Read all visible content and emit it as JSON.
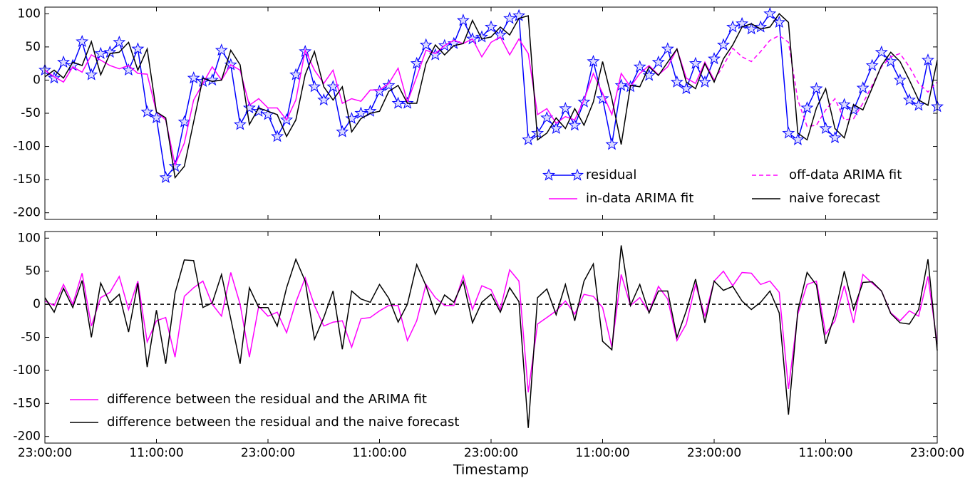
{
  "chart_data": [
    {
      "type": "line",
      "x": [
        0,
        1,
        2,
        3,
        4,
        5,
        6,
        7,
        8,
        9,
        10,
        11,
        12,
        13,
        14,
        15,
        16,
        17,
        18,
        19,
        20,
        21,
        22,
        23,
        24,
        25,
        26,
        27,
        28,
        29,
        30,
        31,
        32,
        33,
        34,
        35,
        36,
        37,
        38,
        39,
        40,
        41,
        42,
        43,
        44,
        45,
        46,
        47,
        48,
        49,
        50,
        51,
        52,
        53,
        54,
        55,
        56,
        57,
        58,
        59,
        60,
        61,
        62,
        63,
        64,
        65,
        66,
        67,
        68,
        69,
        70,
        71,
        72,
        73,
        74,
        75,
        76,
        77,
        78,
        79,
        80,
        81,
        82,
        83,
        84,
        85,
        86,
        87,
        88,
        89,
        90,
        91,
        92,
        93,
        94,
        95,
        96
      ],
      "xlim": [
        0,
        96
      ],
      "xticks": [
        0,
        12,
        24,
        36,
        48,
        60,
        72,
        84,
        96
      ],
      "ylim": [
        -210,
        110
      ],
      "yticks": [
        -200,
        -150,
        -100,
        -50,
        0,
        50,
        100
      ],
      "legend": "lower right",
      "legend_columns": 2,
      "series": [
        {
          "name": "residual",
          "color": "#0000ff",
          "marker": "star",
          "marker_facecolor": "#dcdcff",
          "values": [
            15,
            3,
            27,
            22,
            58,
            8,
            40,
            42,
            57,
            15,
            47,
            -48,
            -57,
            -147,
            -130,
            -63,
            3,
            -2,
            0,
            45,
            23,
            -67,
            -42,
            -47,
            -52,
            -85,
            -60,
            8,
            43,
            -10,
            -30,
            -10,
            -78,
            -58,
            -50,
            -47,
            -17,
            -8,
            -35,
            -35,
            25,
            53,
            38,
            52,
            55,
            90,
            62,
            65,
            80,
            68,
            93,
            97,
            -90,
            -80,
            -57,
            -73,
            -43,
            -68,
            -33,
            28,
            -28,
            -97,
            -8,
            -10,
            20,
            7,
            27,
            47,
            -3,
            -13,
            25,
            -3,
            32,
            53,
            80,
            85,
            77,
            80,
            100,
            87,
            -80,
            -90,
            -42,
            -13,
            -73,
            -87,
            -37,
            -45,
            -12,
            22,
            42,
            28,
            0,
            -30,
            -38,
            30,
            -40
          ]
        },
        {
          "name": "in-data ARIMA fit",
          "color": "#ff00ff",
          "style": "solid",
          "values": [
            15,
            5,
            -3,
            20,
            12,
            38,
            30,
            22,
            17,
            22,
            10,
            9,
            -48,
            -60,
            -128,
            -95,
            -30,
            -5,
            20,
            0,
            23,
            15,
            -38,
            -28,
            -42,
            -42,
            -60,
            -30,
            45,
            15,
            -5,
            15,
            -35,
            -28,
            -32,
            -15,
            -15,
            -5,
            18,
            -33,
            5,
            45,
            40,
            52,
            60,
            55,
            62,
            35,
            57,
            65,
            38,
            62,
            40,
            -52,
            -43,
            -65,
            -55,
            -60,
            -30,
            10,
            -20,
            -52,
            10,
            -10,
            10,
            22,
            8,
            20,
            47,
            3,
            -5,
            27,
            0,
            null,
            null,
            null,
            null,
            null,
            null,
            null,
            null,
            null,
            null,
            null,
            null,
            null,
            null,
            null,
            null,
            null,
            null,
            null,
            null,
            null,
            null,
            null,
            null
          ]
        },
        {
          "name": "off-data ARIMA fit",
          "color": "#ff00ff",
          "style": "dashed",
          "values": [
            null,
            null,
            null,
            null,
            null,
            null,
            null,
            null,
            null,
            null,
            null,
            null,
            null,
            null,
            null,
            null,
            null,
            null,
            null,
            null,
            null,
            null,
            null,
            null,
            null,
            null,
            null,
            null,
            null,
            null,
            null,
            null,
            null,
            null,
            null,
            null,
            null,
            null,
            null,
            null,
            null,
            null,
            null,
            null,
            null,
            null,
            null,
            null,
            null,
            null,
            null,
            null,
            null,
            null,
            null,
            null,
            null,
            null,
            null,
            null,
            null,
            null,
            null,
            null,
            null,
            null,
            null,
            null,
            null,
            null,
            null,
            null,
            0,
            22,
            48,
            35,
            28,
            43,
            60,
            67,
            57,
            -30,
            -70,
            -68,
            -45,
            -28,
            -60,
            -58,
            -35,
            -8,
            20,
            35,
            40,
            20,
            -5,
            -18,
            -3
          ]
        },
        {
          "name": "naive forecast",
          "color": "#000000",
          "style": "solid",
          "values": [
            5,
            15,
            3,
            27,
            22,
            58,
            8,
            40,
            42,
            57,
            15,
            47,
            -48,
            -57,
            -147,
            -130,
            -63,
            3,
            -2,
            0,
            45,
            23,
            -67,
            -42,
            -47,
            -52,
            -85,
            -60,
            8,
            43,
            -10,
            -30,
            -10,
            -78,
            -58,
            -50,
            -47,
            -17,
            -8,
            -35,
            -35,
            25,
            53,
            38,
            52,
            55,
            90,
            62,
            65,
            80,
            68,
            93,
            97,
            -90,
            -80,
            -57,
            -73,
            -43,
            -68,
            -33,
            28,
            -28,
            -97,
            -8,
            -10,
            20,
            7,
            27,
            47,
            -3,
            -13,
            25,
            -3,
            32,
            53,
            80,
            85,
            77,
            80,
            100,
            87,
            -80,
            -90,
            -42,
            -13,
            -73,
            -87,
            -37,
            -45,
            -12,
            22,
            42,
            28,
            0,
            -30,
            -38,
            30
          ]
        }
      ]
    },
    {
      "type": "line",
      "x_label": "Timestamp",
      "x": [
        0,
        1,
        2,
        3,
        4,
        5,
        6,
        7,
        8,
        9,
        10,
        11,
        12,
        13,
        14,
        15,
        16,
        17,
        18,
        19,
        20,
        21,
        22,
        23,
        24,
        25,
        26,
        27,
        28,
        29,
        30,
        31,
        32,
        33,
        34,
        35,
        36,
        37,
        38,
        39,
        40,
        41,
        42,
        43,
        44,
        45,
        46,
        47,
        48,
        49,
        50,
        51,
        52,
        53,
        54,
        55,
        56,
        57,
        58,
        59,
        60,
        61,
        62,
        63,
        64,
        65,
        66,
        67,
        68,
        69,
        70,
        71,
        72,
        73,
        74,
        75,
        76,
        77,
        78,
        79,
        80,
        81,
        82,
        83,
        84,
        85,
        86,
        87,
        88,
        89,
        90,
        91,
        92,
        93,
        94,
        95,
        96
      ],
      "xlim": [
        0,
        96
      ],
      "xticks": [
        {
          "value": 0,
          "label": "23:00:00"
        },
        {
          "value": 12,
          "label": "11:00:00"
        },
        {
          "value": 24,
          "label": "23:00:00"
        },
        {
          "value": 36,
          "label": "11:00:00"
        },
        {
          "value": 48,
          "label": "23:00:00"
        },
        {
          "value": 60,
          "label": "11:00:00"
        },
        {
          "value": 72,
          "label": "23:00:00"
        },
        {
          "value": 84,
          "label": "11:00:00"
        },
        {
          "value": 96,
          "label": "23:00:00"
        }
      ],
      "ylim": [
        -210,
        110
      ],
      "yticks": [
        -200,
        -150,
        -100,
        -50,
        0,
        50,
        100
      ],
      "reference_line": 0,
      "legend": "lower left",
      "legend_columns": 1,
      "series": [
        {
          "name": "difference between the residual and the ARIMA fit",
          "color": "#ff00ff",
          "style": "solid",
          "values": [
            5,
            -2,
            30,
            0,
            47,
            -33,
            10,
            18,
            42,
            -8,
            35,
            -57,
            -25,
            -20,
            -80,
            12,
            25,
            35,
            0,
            -18,
            48,
            0,
            -80,
            -3,
            -18,
            -12,
            -43,
            3,
            40,
            -2,
            -33,
            -27,
            -25,
            -65,
            -22,
            -20,
            -10,
            -2,
            -2,
            -55,
            -25,
            30,
            10,
            -2,
            -2,
            43,
            -8,
            28,
            22,
            -8,
            52,
            35,
            -133,
            -30,
            -20,
            -10,
            5,
            -15,
            15,
            12,
            -5,
            -65,
            45,
            -2,
            10,
            -12,
            27,
            8,
            -55,
            -30,
            30,
            -18,
            35,
            50,
            28,
            48,
            47,
            30,
            35,
            18,
            -128,
            -15,
            30,
            35,
            -45,
            -25,
            28,
            -28,
            45,
            32,
            20,
            -13,
            -25,
            -10,
            -18,
            42,
            -60
          ]
        },
        {
          "name": "difference between the residual and the naive forecast",
          "color": "#000000",
          "style": "solid",
          "values": [
            10,
            -12,
            24,
            -5,
            36,
            -50,
            32,
            2,
            15,
            -42,
            32,
            -95,
            -9,
            -90,
            17,
            67,
            66,
            -5,
            2,
            45,
            -22,
            -90,
            25,
            -5,
            -5,
            -33,
            25,
            68,
            35,
            -53,
            -20,
            20,
            -68,
            20,
            8,
            3,
            30,
            9,
            -27,
            0,
            60,
            28,
            -15,
            14,
            3,
            35,
            -28,
            3,
            15,
            -12,
            25,
            4,
            -187,
            10,
            23,
            -16,
            30,
            -25,
            35,
            61,
            -56,
            -69,
            89,
            -2,
            30,
            -13,
            20,
            20,
            -50,
            -10,
            38,
            -28,
            35,
            21,
            27,
            5,
            -8,
            3,
            20,
            -13,
            -167,
            -10,
            48,
            29,
            -60,
            -14,
            50,
            -8,
            33,
            34,
            20,
            -14,
            -28,
            -30,
            -8,
            68,
            -70
          ]
        }
      ]
    }
  ]
}
